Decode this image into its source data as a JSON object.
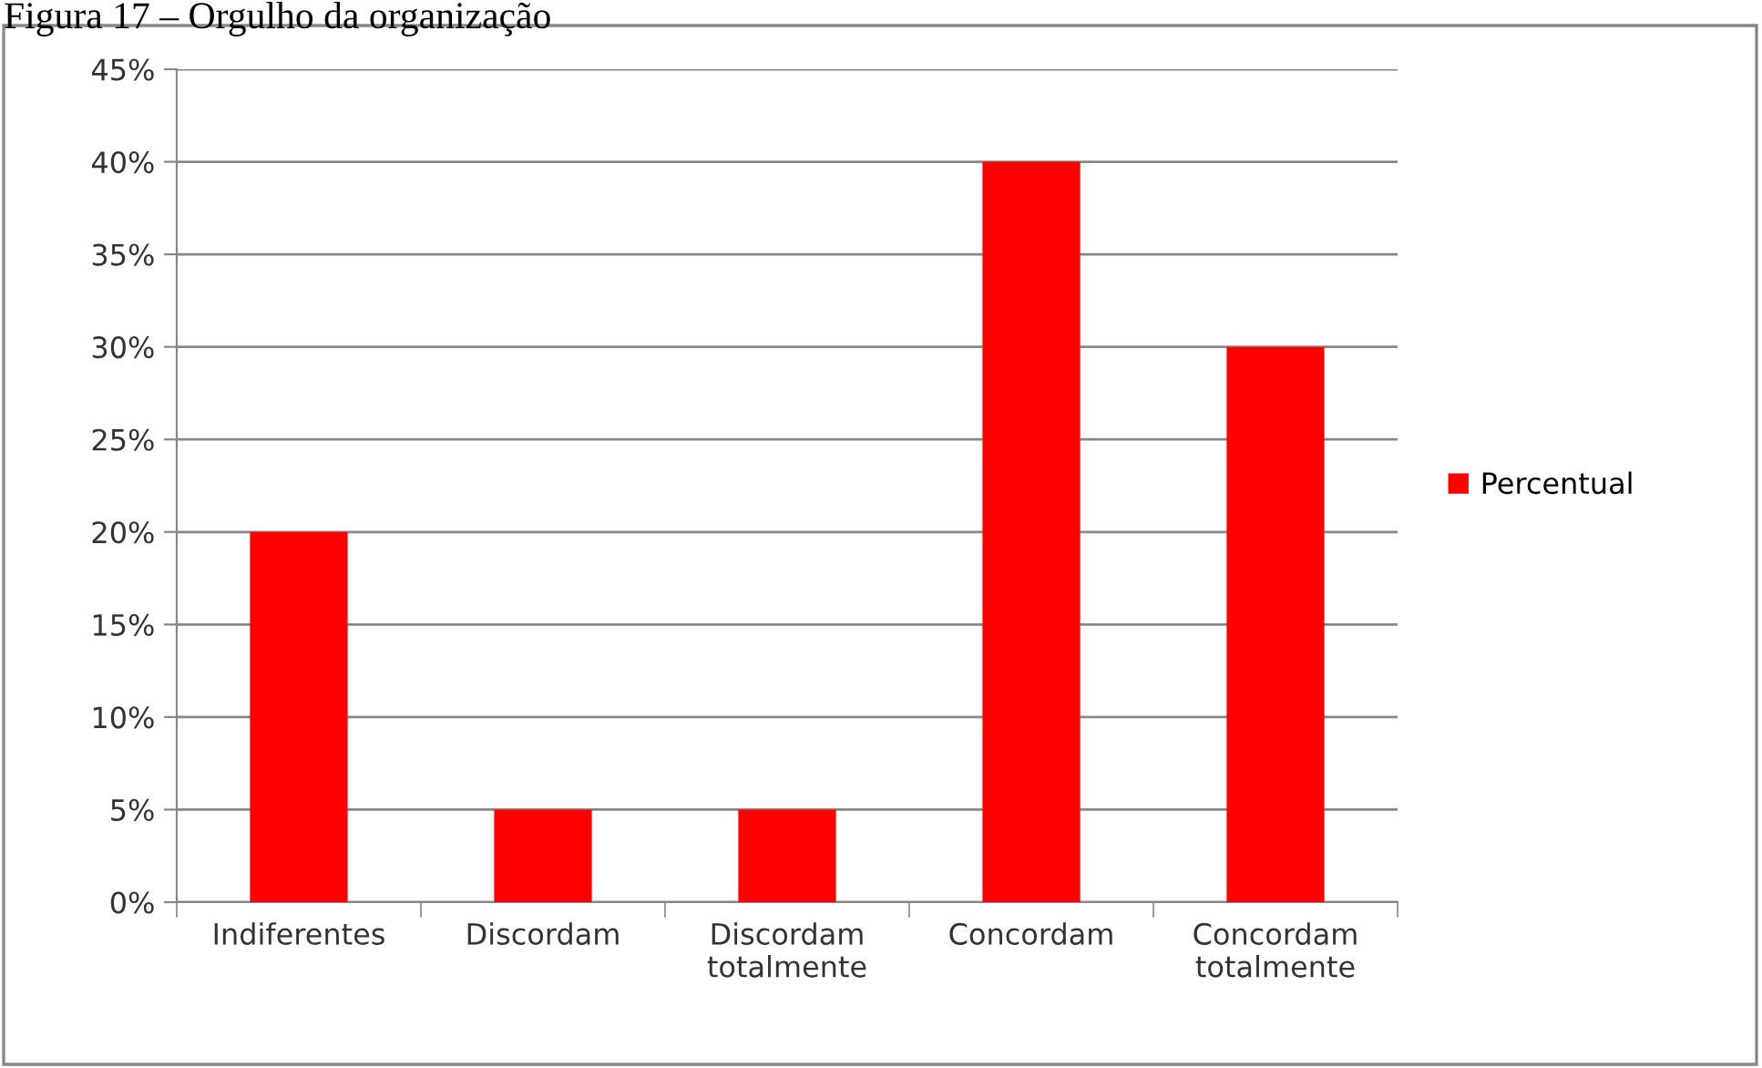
{
  "chart_data": {
    "type": "bar",
    "title": "Figura 17 – Orgulho da organização",
    "categories": [
      "Indiferentes",
      "Discordam",
      "Discordam\ntotalmente",
      "Concordam",
      "Concordam\ntotalmente"
    ],
    "series": [
      {
        "name": "Percentual",
        "color": "#ff0000",
        "values": [
          20,
          5,
          5,
          40,
          30
        ]
      }
    ],
    "ylim": [
      0,
      45
    ],
    "yticks": [
      {
        "value": 0,
        "label": "0%"
      },
      {
        "value": 5,
        "label": "5%"
      },
      {
        "value": 10,
        "label": "10%"
      },
      {
        "value": 15,
        "label": "15%"
      },
      {
        "value": 20,
        "label": "20%"
      },
      {
        "value": 25,
        "label": "25%"
      },
      {
        "value": 30,
        "label": "30%"
      },
      {
        "value": 35,
        "label": "35%"
      },
      {
        "value": 40,
        "label": "40%"
      },
      {
        "value": 45,
        "label": "45%"
      }
    ],
    "grid": "y",
    "legend": "right"
  }
}
